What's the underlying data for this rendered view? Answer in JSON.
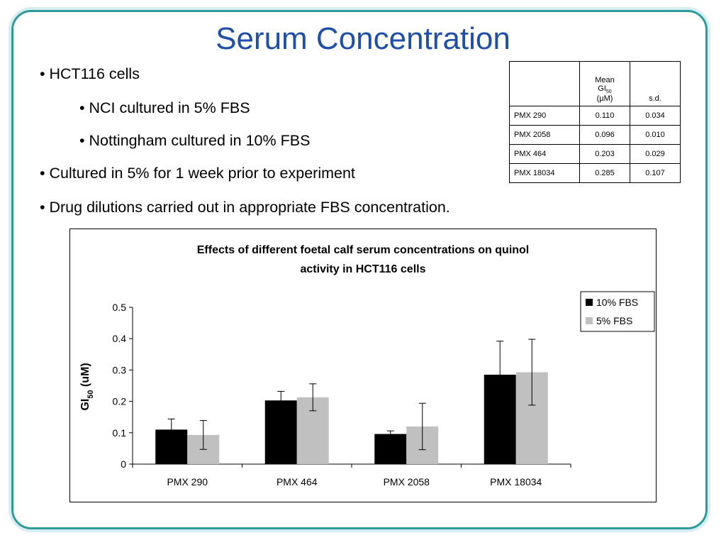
{
  "slide": {
    "title": "Serum Concentration",
    "bullets": [
      {
        "text": "• HCT116 cells",
        "level": 1
      },
      {
        "text": "• NCI cultured in 5% FBS",
        "level": 2
      },
      {
        "text": "• Nottingham cultured in 10% FBS",
        "level": 2
      },
      {
        "text": "• Cultured in 5% for 1 week prior to experiment",
        "level": 1
      },
      {
        "text": "• Drug dilutions carried out in appropriate FBS concentration.",
        "level": 1
      }
    ],
    "frame_color": "#2e9a9c",
    "title_color": "#1f4fa8"
  },
  "table": {
    "header_mean_line1": "Mean",
    "header_mean_line2": "GI",
    "header_mean_sub": "50",
    "header_mean_line3": "(µM)",
    "header_sd": "s.d.",
    "rows": [
      {
        "name": "PMX 290",
        "mean": "0.110",
        "sd": "0.034"
      },
      {
        "name": "PMX 2058",
        "mean": "0.096",
        "sd": "0.010"
      },
      {
        "name": "PMX 464",
        "mean": "0.203",
        "sd": "0.029"
      },
      {
        "name": "PMX 18034",
        "mean": "0.285",
        "sd": "0.107"
      }
    ]
  },
  "chart_data": {
    "type": "bar",
    "title_line1": "Effects of different foetal calf serum concentrations on quinol",
    "title_line2": "activity in HCT116 cells",
    "ylabel": "GI",
    "ylabel_sub": "50",
    "ylabel_suffix": " (uM)",
    "xlabel": "",
    "ylim": [
      0,
      0.5
    ],
    "yticks": [
      "0",
      "0.1",
      "0.2",
      "0.3",
      "0.4",
      "0.5"
    ],
    "categories": [
      "PMX 290",
      "PMX 464",
      "PMX 2058",
      "PMX 18034"
    ],
    "series": [
      {
        "name": "10% FBS",
        "color": "#000000",
        "values": [
          0.11,
          0.203,
          0.096,
          0.285
        ],
        "errors": [
          0.034,
          0.029,
          0.01,
          0.107
        ]
      },
      {
        "name": "5% FBS",
        "color": "#c0c0c0",
        "values": [
          0.093,
          0.213,
          0.12,
          0.293
        ],
        "errors": [
          0.046,
          0.043,
          0.074,
          0.105
        ]
      }
    ],
    "grid": false,
    "legend_position": "top-right"
  }
}
